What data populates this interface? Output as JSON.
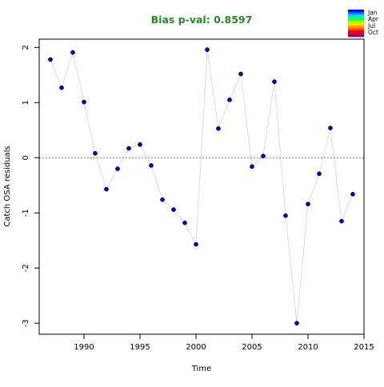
{
  "chart_data": {
    "type": "scatter",
    "title": "Bias p-val: 0.8597",
    "title_color": "#228B22",
    "xlabel": "Time",
    "ylabel": "Catch OSA residuals",
    "xlim": [
      1986,
      2015
    ],
    "ylim": [
      -3.2,
      2.15
    ],
    "xticks": [
      1990,
      1995,
      2000,
      2005,
      2010,
      2015
    ],
    "yticks": [
      -3,
      -2,
      -1,
      0,
      1,
      2
    ],
    "reference_line": {
      "y": 0,
      "style": "dotted"
    },
    "connect_points": true,
    "grid": false,
    "line_color": "#d3d3d3",
    "point_color": "#0000cd",
    "x": [
      1987,
      1988,
      1989,
      1990,
      1991,
      1992,
      1993,
      1994,
      1995,
      1996,
      1997,
      1998,
      1999,
      2000,
      2001,
      2002,
      2003,
      2004,
      2005,
      2006,
      2007,
      2008,
      2009,
      2010,
      2011,
      2012,
      2013,
      2014
    ],
    "y": [
      1.78,
      1.27,
      1.91,
      1.01,
      0.08,
      -0.57,
      -0.2,
      0.17,
      0.24,
      -0.14,
      -0.76,
      -0.94,
      -1.18,
      -1.57,
      1.96,
      0.53,
      1.05,
      1.52,
      -0.16,
      0.03,
      1.38,
      -1.05,
      -3.0,
      -0.84,
      -0.29,
      0.54,
      -1.15,
      -0.66
    ],
    "legend": {
      "placement": "top-right",
      "labels": [
        "Jan",
        "Apr",
        "Jul",
        "Oct"
      ],
      "colors": [
        "#0000ff",
        "#0073ff",
        "#00d2ff",
        "#00ff80",
        "#40ff00",
        "#a8ff00",
        "#ffe000",
        "#ffa000",
        "#ff5a00",
        "#ff0000",
        "#d00040",
        "#8b008b"
      ]
    }
  }
}
